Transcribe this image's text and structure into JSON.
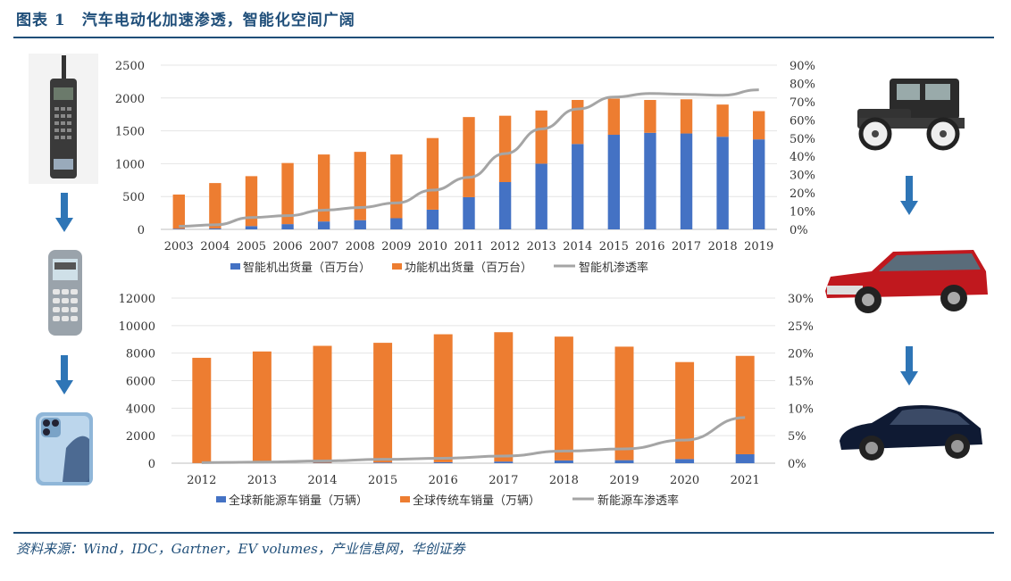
{
  "header": {
    "title": "图表 1　汽车电动化加速渗透，智能化空间广阔"
  },
  "footer": {
    "source": "资料来源：Wind，IDC，Gartner，EV volumes，产业信息网，华创证券"
  },
  "colors": {
    "primary": "#4472c4",
    "secondary": "#ed7d31",
    "line": "#a5a5a5",
    "brand": "#1f4e79"
  },
  "icons": {
    "left": [
      "brick-phone-icon",
      "arrow-down-icon",
      "feature-phone-icon",
      "arrow-down-icon",
      "smartphone-icon"
    ],
    "right": [
      "vintage-car-icon",
      "arrow-down-icon",
      "classic-car-icon",
      "arrow-down-icon",
      "electric-car-icon"
    ]
  },
  "chart_data": [
    {
      "type": "bar",
      "stacked": true,
      "categories": [
        "2003",
        "2004",
        "2005",
        "2006",
        "2007",
        "2008",
        "2009",
        "2010",
        "2011",
        "2012",
        "2013",
        "2014",
        "2015",
        "2016",
        "2017",
        "2018",
        "2019"
      ],
      "series": [
        {
          "name": "智能机出货量（百万台）",
          "type": "bar",
          "axis": "left",
          "values": [
            10,
            15,
            50,
            80,
            120,
            140,
            170,
            300,
            490,
            720,
            1000,
            1300,
            1440,
            1470,
            1460,
            1410,
            1370
          ]
        },
        {
          "name": "功能机出货量（百万台）",
          "type": "bar",
          "axis": "left",
          "values": [
            520,
            690,
            760,
            930,
            1020,
            1040,
            970,
            1090,
            1220,
            1010,
            810,
            670,
            550,
            500,
            520,
            490,
            430
          ]
        },
        {
          "name": "智能机渗透率",
          "type": "line",
          "axis": "right",
          "values": [
            1.7,
            2.5,
            6.5,
            7.5,
            10.5,
            12,
            14.5,
            21.5,
            28.5,
            41.5,
            55,
            66,
            72.5,
            74.5,
            74,
            73.5,
            76.5
          ]
        }
      ],
      "yleft": {
        "ticks": [
          "0",
          "500",
          "1000",
          "1500",
          "2000",
          "2500"
        ],
        "lim": [
          0,
          2500
        ]
      },
      "yright": {
        "ticks": [
          "0%",
          "10%",
          "20%",
          "30%",
          "40%",
          "50%",
          "60%",
          "70%",
          "80%",
          "90%"
        ],
        "lim": [
          0,
          90
        ]
      },
      "legend": "bottom"
    },
    {
      "type": "bar",
      "stacked": true,
      "categories": [
        "2012",
        "2013",
        "2014",
        "2015",
        "2016",
        "2017",
        "2018",
        "2019",
        "2020",
        "2021"
      ],
      "series": [
        {
          "name": "全球新能源车销量（万辆）",
          "type": "bar",
          "axis": "left",
          "values": [
            10,
            20,
            30,
            50,
            70,
            120,
            200,
            220,
            300,
            650
          ]
        },
        {
          "name": "全球传统车销量（万辆）",
          "type": "bar",
          "axis": "left",
          "values": [
            7650,
            8100,
            8500,
            8700,
            9300,
            9400,
            9000,
            8250,
            7050,
            7150
          ]
        },
        {
          "name": "新能源车渗透率",
          "type": "line",
          "axis": "right",
          "values": [
            0.1,
            0.2,
            0.4,
            0.7,
            0.9,
            1.3,
            2.2,
            2.6,
            4.2,
            8.3
          ]
        }
      ],
      "yleft": {
        "ticks": [
          "0",
          "2000",
          "4000",
          "6000",
          "8000",
          "10000",
          "12000"
        ],
        "lim": [
          0,
          12000
        ]
      },
      "yright": {
        "ticks": [
          "0%",
          "5%",
          "10%",
          "15%",
          "20%",
          "25%",
          "30%"
        ],
        "lim": [
          0,
          30
        ]
      },
      "legend": "bottom"
    }
  ]
}
